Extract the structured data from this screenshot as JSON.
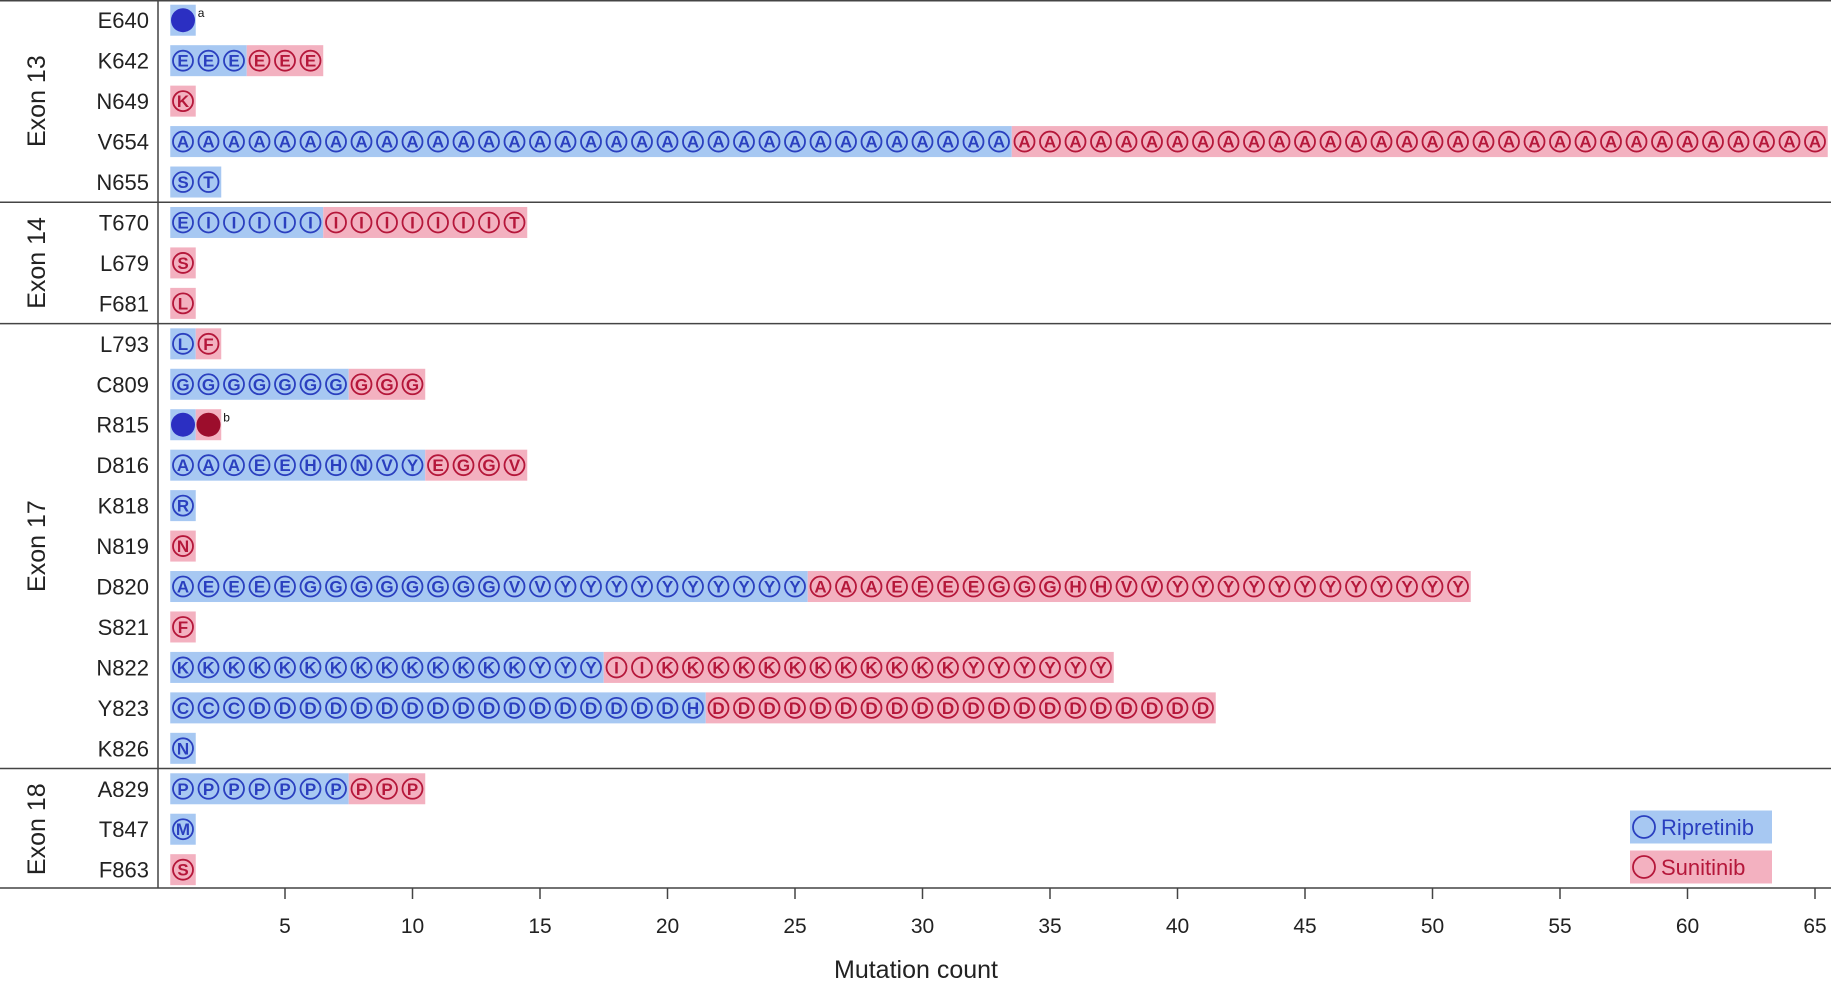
{
  "chart_data": {
    "type": "bar",
    "subtype": "stacked-dot-strip",
    "xlabel": "Mutation count",
    "x_ticks": [
      5,
      10,
      15,
      20,
      25,
      30,
      35,
      40,
      45,
      50,
      55,
      60,
      65
    ],
    "xlim": [
      0.5,
      65
    ],
    "legend": {
      "placement": "bottom-right",
      "items": [
        {
          "name": "Ripretinib",
          "key": "ripretinib"
        },
        {
          "name": "Sunitinib",
          "key": "sunitinib"
        }
      ]
    },
    "colors": {
      "ripretinib_band": "#a7c8f2",
      "ripretinib_mark": "#2a3fbf",
      "ripretinib_solid": "#2b2fc2",
      "sunitinib_band": "#f3b1c0",
      "sunitinib_mark": "#b5173a",
      "sunitinib_solid": "#9c0d2c",
      "divider": "#444444"
    },
    "groups": [
      {
        "exon": "Exon 13",
        "rows": [
          {
            "residue": "E640",
            "ripretinib": [
              ""
            ],
            "sunitinib": [],
            "solid": true,
            "note": "a"
          },
          {
            "residue": "K642",
            "ripretinib": [
              "E",
              "E",
              "E"
            ],
            "sunitinib": [
              "E",
              "E",
              "E"
            ]
          },
          {
            "residue": "N649",
            "ripretinib": [],
            "sunitinib": [
              "K"
            ]
          },
          {
            "residue": "V654",
            "ripretinib": [
              "A",
              "A",
              "A",
              "A",
              "A",
              "A",
              "A",
              "A",
              "A",
              "A",
              "A",
              "A",
              "A",
              "A",
              "A",
              "A",
              "A",
              "A",
              "A",
              "A",
              "A",
              "A",
              "A",
              "A",
              "A",
              "A",
              "A",
              "A",
              "A",
              "A",
              "A",
              "A",
              "A"
            ],
            "sunitinib": [
              "A",
              "A",
              "A",
              "A",
              "A",
              "A",
              "A",
              "A",
              "A",
              "A",
              "A",
              "A",
              "A",
              "A",
              "A",
              "A",
              "A",
              "A",
              "A",
              "A",
              "A",
              "A",
              "A",
              "A",
              "A",
              "A",
              "A",
              "A",
              "A",
              "A",
              "A",
              "A"
            ]
          },
          {
            "residue": "N655",
            "ripretinib": [
              "S",
              "T"
            ],
            "sunitinib": []
          }
        ]
      },
      {
        "exon": "Exon 14",
        "rows": [
          {
            "residue": "T670",
            "ripretinib": [
              "E",
              "I",
              "I",
              "I",
              "I",
              "I"
            ],
            "sunitinib": [
              "I",
              "I",
              "I",
              "I",
              "I",
              "I",
              "I",
              "T"
            ]
          },
          {
            "residue": "L679",
            "ripretinib": [],
            "sunitinib": [
              "S"
            ]
          },
          {
            "residue": "F681",
            "ripretinib": [],
            "sunitinib": [
              "L"
            ]
          }
        ]
      },
      {
        "exon": "Exon 17",
        "rows": [
          {
            "residue": "L793",
            "ripretinib": [
              "L"
            ],
            "sunitinib": [
              "F"
            ]
          },
          {
            "residue": "C809",
            "ripretinib": [
              "G",
              "G",
              "G",
              "G",
              "G",
              "G",
              "G"
            ],
            "sunitinib": [
              "G",
              "G",
              "G"
            ]
          },
          {
            "residue": "R815",
            "ripretinib": [
              ""
            ],
            "sunitinib": [
              ""
            ],
            "solid": true,
            "note": "b"
          },
          {
            "residue": "D816",
            "ripretinib": [
              "A",
              "A",
              "A",
              "E",
              "E",
              "H",
              "H",
              "N",
              "V",
              "Y"
            ],
            "sunitinib": [
              "E",
              "G",
              "G",
              "V"
            ]
          },
          {
            "residue": "K818",
            "ripretinib": [
              "R"
            ],
            "sunitinib": []
          },
          {
            "residue": "N819",
            "ripretinib": [],
            "sunitinib": [
              "N"
            ]
          },
          {
            "residue": "D820",
            "ripretinib": [
              "A",
              "E",
              "E",
              "E",
              "E",
              "G",
              "G",
              "G",
              "G",
              "G",
              "G",
              "G",
              "G",
              "V",
              "V",
              "Y",
              "Y",
              "Y",
              "Y",
              "Y",
              "Y",
              "Y",
              "Y",
              "Y",
              "Y"
            ],
            "sunitinib": [
              "A",
              "A",
              "A",
              "E",
              "E",
              "E",
              "E",
              "G",
              "G",
              "G",
              "H",
              "H",
              "V",
              "V",
              "Y",
              "Y",
              "Y",
              "Y",
              "Y",
              "Y",
              "Y",
              "Y",
              "Y",
              "Y",
              "Y",
              "Y"
            ]
          },
          {
            "residue": "S821",
            "ripretinib": [],
            "sunitinib": [
              "F"
            ]
          },
          {
            "residue": "N822",
            "ripretinib": [
              "K",
              "K",
              "K",
              "K",
              "K",
              "K",
              "K",
              "K",
              "K",
              "K",
              "K",
              "K",
              "K",
              "K",
              "Y",
              "Y",
              "Y"
            ],
            "sunitinib": [
              "I",
              "I",
              "K",
              "K",
              "K",
              "K",
              "K",
              "K",
              "K",
              "K",
              "K",
              "K",
              "K",
              "K",
              "Y",
              "Y",
              "Y",
              "Y",
              "Y",
              "Y"
            ]
          },
          {
            "residue": "Y823",
            "ripretinib": [
              "C",
              "C",
              "C",
              "D",
              "D",
              "D",
              "D",
              "D",
              "D",
              "D",
              "D",
              "D",
              "D",
              "D",
              "D",
              "D",
              "D",
              "D",
              "D",
              "D",
              "H"
            ],
            "sunitinib": [
              "D",
              "D",
              "D",
              "D",
              "D",
              "D",
              "D",
              "D",
              "D",
              "D",
              "D",
              "D",
              "D",
              "D",
              "D",
              "D",
              "D",
              "D",
              "D",
              "D"
            ]
          },
          {
            "residue": "K826",
            "ripretinib": [
              "N"
            ],
            "sunitinib": []
          }
        ]
      },
      {
        "exon": "Exon 18",
        "rows": [
          {
            "residue": "A829",
            "ripretinib": [
              "P",
              "P",
              "P",
              "P",
              "P",
              "P",
              "P"
            ],
            "sunitinib": [
              "P",
              "P",
              "P"
            ]
          },
          {
            "residue": "T847",
            "ripretinib": [
              "M"
            ],
            "sunitinib": []
          },
          {
            "residue": "F863",
            "ripretinib": [],
            "sunitinib": [
              "S"
            ]
          }
        ]
      }
    ]
  }
}
